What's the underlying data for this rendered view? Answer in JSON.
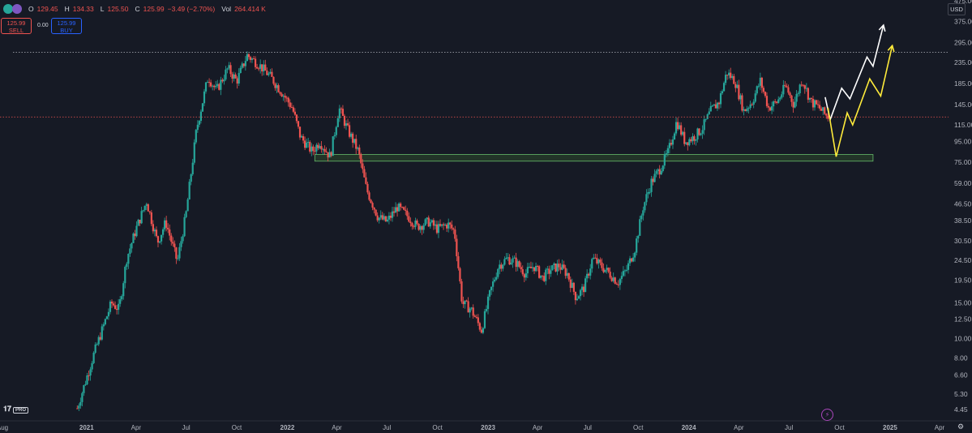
{
  "header": {
    "open_label": "O",
    "open": "129.45",
    "high_label": "H",
    "high": "134.33",
    "low_label": "L",
    "low": "125.50",
    "close_label": "C",
    "close": "125.99",
    "change": "−3.49 (−2.70%)",
    "vol_label": "Vol",
    "volume": "264.414 K"
  },
  "trade": {
    "sell_price": "125.99",
    "sell_label": "SELL",
    "spread": "0.00",
    "buy_price": "125.99",
    "buy_label": "BUY"
  },
  "currency_button": "USD",
  "logo_pro": "PRO",
  "colors": {
    "background": "#161a25",
    "up": "#26a69a",
    "down": "#ef5350",
    "zone_fill": "#2d4a2b",
    "zone_border": "#66bb6a",
    "arrow_white": "#ffffff",
    "arrow_yellow": "#ffeb3b",
    "level_line": "#b2b5be",
    "price_line": "#ef5350"
  },
  "chart_data": {
    "type": "candlestick",
    "y_scale": "log",
    "ylim": [
      3.9,
      480
    ],
    "y_ticks": [
      "4.45",
      "5.30",
      "6.60",
      "8.00",
      "10.00",
      "12.50",
      "15.00",
      "19.50",
      "24.50",
      "30.50",
      "38.50",
      "46.50",
      "59.00",
      "75.00",
      "95.00",
      "115.00",
      "145.00",
      "185.00",
      "235.00",
      "295.00",
      "375.00",
      "475.00"
    ],
    "y_tick_values": [
      4.45,
      5.3,
      6.6,
      8,
      10,
      12.5,
      15,
      19.5,
      24.5,
      30.5,
      38.5,
      46.5,
      59,
      75,
      95,
      115,
      145,
      185,
      235,
      295,
      375,
      475
    ],
    "x_ticks": [
      "Aug",
      "2021",
      "Apr",
      "Jul",
      "Oct",
      "2022",
      "Apr",
      "Jul",
      "Oct",
      "2023",
      "Apr",
      "Jul",
      "Oct",
      "2024",
      "Apr",
      "Jul",
      "Oct",
      "2025",
      "Apr"
    ],
    "x_tick_dates": [
      "2020-08",
      "2021-01",
      "2021-04",
      "2021-07",
      "2021-10",
      "2022-01",
      "2022-04",
      "2022-07",
      "2022-10",
      "2023-01",
      "2023-04",
      "2023-07",
      "2023-10",
      "2024-01",
      "2024-04",
      "2024-07",
      "2024-10",
      "2025-01",
      "2025-04"
    ],
    "last_price_label": "125.99",
    "countdown_label": "2d 8h",
    "level_label": "263.60",
    "resistance_level": 263.6,
    "last_price": 125.99,
    "support_zone": {
      "low": 76,
      "high": 82,
      "from": "2022-02",
      "to": "2024-12"
    },
    "price_path": [
      [
        "2020-12-15",
        4.5
      ],
      [
        "2021-01-15",
        8.5
      ],
      [
        "2021-02-15",
        15
      ],
      [
        "2021-03-01",
        14
      ],
      [
        "2021-03-15",
        25
      ],
      [
        "2021-04-01",
        35
      ],
      [
        "2021-04-20",
        48
      ],
      [
        "2021-05-10",
        30
      ],
      [
        "2021-05-25",
        38
      ],
      [
        "2021-06-15",
        24
      ],
      [
        "2021-07-01",
        42
      ],
      [
        "2021-07-20",
        110
      ],
      [
        "2021-08-10",
        200
      ],
      [
        "2021-08-25",
        170
      ],
      [
        "2021-09-15",
        220
      ],
      [
        "2021-10-01",
        190
      ],
      [
        "2021-10-20",
        255
      ],
      [
        "2021-11-10",
        230
      ],
      [
        "2021-12-01",
        200
      ],
      [
        "2021-12-20",
        170
      ],
      [
        "2022-01-10",
        140
      ],
      [
        "2022-01-25",
        100
      ],
      [
        "2022-02-15",
        85
      ],
      [
        "2022-03-01",
        95
      ],
      [
        "2022-03-20",
        80
      ],
      [
        "2022-04-05",
        140
      ],
      [
        "2022-04-20",
        110
      ],
      [
        "2022-05-10",
        85
      ],
      [
        "2022-05-25",
        55
      ],
      [
        "2022-06-15",
        40
      ],
      [
        "2022-07-01",
        38
      ],
      [
        "2022-07-20",
        45
      ],
      [
        "2022-08-10",
        40
      ],
      [
        "2022-08-25",
        36
      ],
      [
        "2022-09-15",
        38
      ],
      [
        "2022-10-01",
        35
      ],
      [
        "2022-10-20",
        37
      ],
      [
        "2022-11-01",
        34
      ],
      [
        "2022-11-15",
        15
      ],
      [
        "2022-12-01",
        14
      ],
      [
        "2022-12-20",
        11
      ],
      [
        "2023-01-05",
        17
      ],
      [
        "2023-01-20",
        23
      ],
      [
        "2023-02-05",
        25
      ],
      [
        "2023-02-20",
        24
      ],
      [
        "2023-03-10",
        21
      ],
      [
        "2023-03-25",
        23
      ],
      [
        "2023-04-10",
        20
      ],
      [
        "2023-04-25",
        22
      ],
      [
        "2023-05-10",
        23
      ],
      [
        "2023-05-25",
        21
      ],
      [
        "2023-06-10",
        16
      ],
      [
        "2023-06-25",
        18
      ],
      [
        "2023-07-10",
        25
      ],
      [
        "2023-07-25",
        23
      ],
      [
        "2023-08-10",
        21
      ],
      [
        "2023-08-25",
        19
      ],
      [
        "2023-09-10",
        22
      ],
      [
        "2023-09-25",
        28
      ],
      [
        "2023-10-10",
        45
      ],
      [
        "2023-10-25",
        60
      ],
      [
        "2023-11-10",
        70
      ],
      [
        "2023-11-25",
        85
      ],
      [
        "2023-12-10",
        120
      ],
      [
        "2023-12-25",
        95
      ],
      [
        "2024-01-10",
        100
      ],
      [
        "2024-01-25",
        110
      ],
      [
        "2024-02-10",
        135
      ],
      [
        "2024-02-25",
        150
      ],
      [
        "2024-03-10",
        210
      ],
      [
        "2024-03-25",
        190
      ],
      [
        "2024-04-10",
        135
      ],
      [
        "2024-04-25",
        150
      ],
      [
        "2024-05-10",
        190
      ],
      [
        "2024-05-25",
        140
      ],
      [
        "2024-06-10",
        150
      ],
      [
        "2024-06-25",
        180
      ],
      [
        "2024-07-10",
        145
      ],
      [
        "2024-07-25",
        195
      ],
      [
        "2024-08-10",
        150
      ],
      [
        "2024-08-25",
        140
      ],
      [
        "2024-09-05",
        129
      ],
      [
        "2024-09-12",
        126
      ]
    ],
    "projection_white": [
      [
        "2024-09-05",
        158
      ],
      [
        "2024-09-14",
        122
      ],
      [
        "2024-10-05",
        175
      ],
      [
        "2024-10-20",
        155
      ],
      [
        "2024-11-20",
        250
      ],
      [
        "2024-12-01",
        225
      ],
      [
        "2024-12-20",
        360
      ]
    ],
    "projection_yellow": [
      [
        "2024-09-10",
        140
      ],
      [
        "2024-09-25",
        80
      ],
      [
        "2024-10-15",
        132
      ],
      [
        "2024-10-25",
        115
      ],
      [
        "2024-11-25",
        195
      ],
      [
        "2024-12-15",
        160
      ],
      [
        "2025-01-05",
        285
      ]
    ]
  }
}
